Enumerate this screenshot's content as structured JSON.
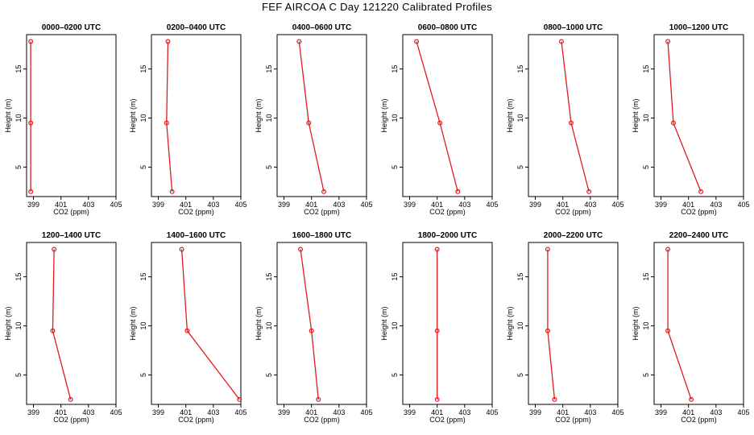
{
  "title": "FEF AIRCOA C  Day 121220  Calibrated Profiles",
  "colors": {
    "line": "#e31a1c",
    "axis": "#000000",
    "background": "#ffffff"
  },
  "chart_data": {
    "type": "line",
    "layout": "2x6 small multiples",
    "shared": {
      "xlabel": "CO2 (ppm)",
      "ylabel": "Height (m)",
      "xlim": [
        398.5,
        405
      ],
      "ylim": [
        2,
        18.5
      ],
      "xticks": [
        399,
        401,
        403,
        405
      ],
      "xtick_labels": [
        "399",
        "401",
        "403",
        "405"
      ],
      "yticks": [
        5,
        10,
        15
      ],
      "ytick_labels": [
        "5",
        "10",
        "15"
      ],
      "heights": [
        2.5,
        9.5,
        17.8
      ],
      "grid": false,
      "marker": "open circle"
    },
    "panels": [
      {
        "title": "0000–0200 UTC",
        "co2": [
          398.8,
          398.8,
          398.8
        ]
      },
      {
        "title": "0200–0400 UTC",
        "co2": [
          400.0,
          399.6,
          399.7
        ]
      },
      {
        "title": "0400–0600 UTC",
        "co2": [
          401.9,
          400.8,
          400.1
        ]
      },
      {
        "title": "0600–0800 UTC",
        "co2": [
          402.5,
          401.2,
          399.5
        ]
      },
      {
        "title": "0800–1000 UTC",
        "co2": [
          402.9,
          401.6,
          400.9
        ]
      },
      {
        "title": "1000–1200 UTC",
        "co2": [
          401.9,
          399.9,
          399.5
        ]
      },
      {
        "title": "1200–1400 UTC",
        "co2": [
          401.7,
          400.4,
          400.5
        ]
      },
      {
        "title": "1400–1600 UTC",
        "co2": [
          404.9,
          401.1,
          400.7
        ]
      },
      {
        "title": "1600–1800 UTC",
        "co2": [
          401.5,
          401.0,
          400.2
        ]
      },
      {
        "title": "1800–2000 UTC",
        "co2": [
          401.0,
          401.0,
          401.0
        ]
      },
      {
        "title": "2000–2200 UTC",
        "co2": [
          400.4,
          399.9,
          399.9
        ]
      },
      {
        "title": "2200–2400 UTC",
        "co2": [
          401.2,
          399.5,
          399.5
        ]
      }
    ]
  }
}
